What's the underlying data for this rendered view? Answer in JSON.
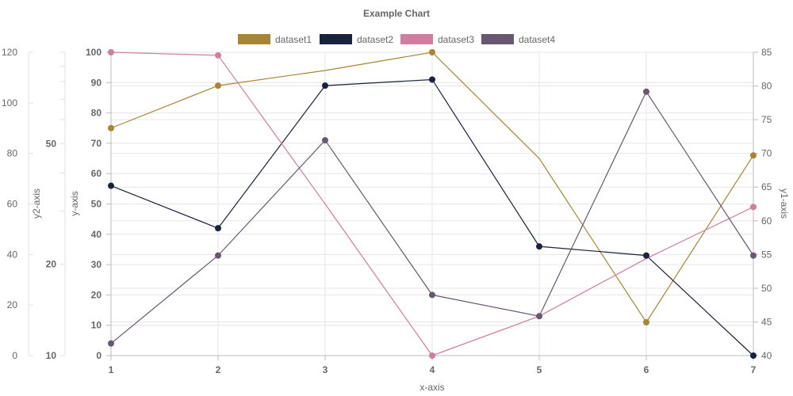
{
  "chart_data": {
    "type": "line",
    "title": "Example Chart",
    "xlabel": "x-axis",
    "categories": [
      "1",
      "2",
      "3",
      "4",
      "5",
      "6",
      "7"
    ],
    "axes": {
      "y": {
        "label": "y-axis",
        "position": "left",
        "min": 0,
        "max": 100,
        "ticks": [
          0,
          10,
          20,
          30,
          40,
          50,
          60,
          70,
          80,
          90,
          100
        ],
        "bold": true
      },
      "y1": {
        "label": "y1-axis",
        "position": "right",
        "min": 40,
        "max": 85,
        "ticks": [
          40,
          45,
          50,
          55,
          60,
          65,
          70,
          75,
          80,
          85
        ]
      },
      "y2": {
        "label": "y2-axis",
        "position": "left",
        "min": 0,
        "max": 120,
        "ticks": [
          0,
          20,
          40,
          60,
          80,
          100,
          120
        ]
      },
      "y3": {
        "position": "left",
        "scale": "log",
        "min": 10,
        "max": 100,
        "ticks": [
          10,
          20,
          50
        ],
        "bold": true
      }
    },
    "legend_position": "top",
    "grid": true,
    "series": [
      {
        "name": "dataset1",
        "color": "#a88532",
        "axis": "y",
        "values": [
          75,
          89,
          94,
          100,
          65,
          11,
          66
        ]
      },
      {
        "name": "dataset2",
        "color": "#19223e",
        "axis": "y",
        "values": [
          56,
          42,
          89,
          91,
          36,
          33,
          0
        ]
      },
      {
        "name": "dataset3",
        "color": "#d27c9f",
        "axis": "y",
        "values": [
          100,
          99,
          50,
          0,
          13,
          32,
          49
        ]
      },
      {
        "name": "dataset4",
        "color": "#695670",
        "axis": "y",
        "values": [
          4,
          33,
          71,
          20,
          13,
          87,
          33
        ]
      }
    ],
    "visible_points": {
      "dataset1": [
        1,
        2,
        4,
        6,
        7
      ],
      "dataset2": [
        1,
        2,
        3,
        4,
        5,
        6,
        7
      ],
      "dataset3": [
        1,
        2,
        4,
        7
      ],
      "dataset4": [
        1,
        2,
        3,
        4,
        5,
        6,
        7
      ]
    }
  }
}
